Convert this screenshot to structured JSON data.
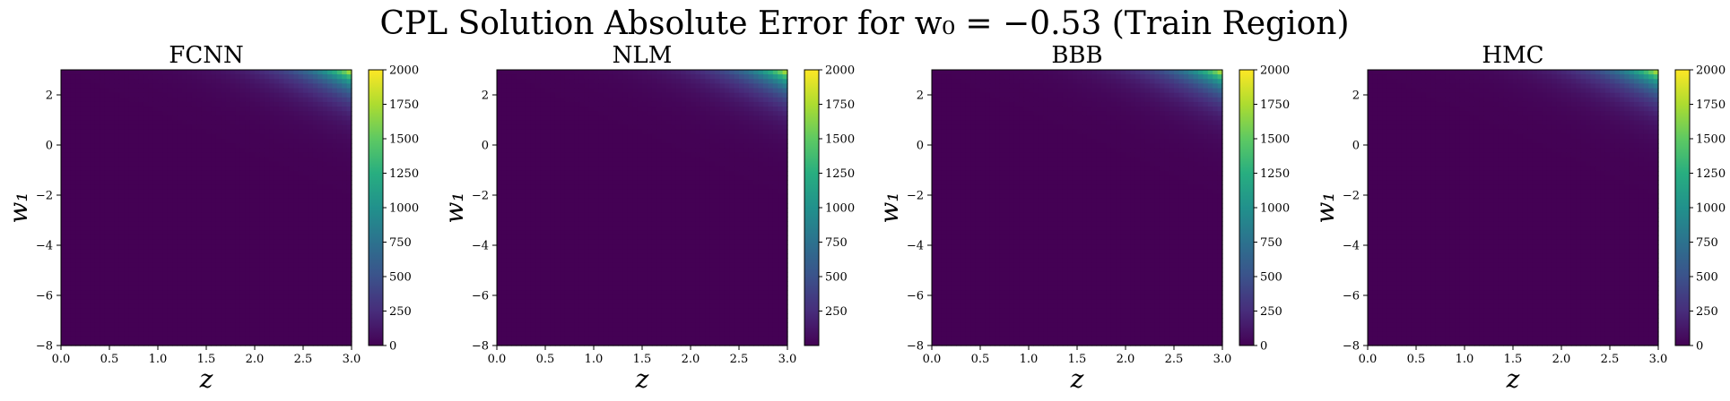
{
  "figure": {
    "suptitle": "CPL Solution Absolute Error for w₀ = −0.53 (Train Region)"
  },
  "chart_data": [
    {
      "type": "heatmap",
      "title": "FCNN",
      "xlabel": "z",
      "ylabel": "w₁",
      "xlim": [
        0.0,
        3.0
      ],
      "ylim": [
        -8,
        3
      ],
      "xticks": [
        "0.0",
        "0.5",
        "1.0",
        "1.5",
        "2.0",
        "2.5",
        "3.0"
      ],
      "yticks": [
        "2",
        "0",
        "−2",
        "−4",
        "−6",
        "−8"
      ],
      "colorbar": {
        "range": [
          0,
          2000
        ],
        "ticks": [
          "0",
          "250",
          "500",
          "750",
          "1000",
          "1250",
          "1500",
          "1750",
          "2000"
        ],
        "colormap": "viridis"
      },
      "peak_value": 2000,
      "peak_location": "top-right",
      "background_value": 0
    },
    {
      "type": "heatmap",
      "title": "NLM",
      "xlabel": "z",
      "ylabel": "w₁",
      "xlim": [
        0.0,
        3.0
      ],
      "ylim": [
        -8,
        3
      ],
      "xticks": [
        "0.0",
        "0.5",
        "1.0",
        "1.5",
        "2.0",
        "2.5",
        "3.0"
      ],
      "yticks": [
        "2",
        "0",
        "−2",
        "−4",
        "−6",
        "−8"
      ],
      "colorbar": {
        "range": [
          0,
          2000
        ],
        "ticks": [
          "250",
          "500",
          "750",
          "1000",
          "1250",
          "1500",
          "1750",
          "2000"
        ],
        "colormap": "viridis"
      },
      "peak_value": 2000,
      "peak_location": "top-right",
      "background_value": 0
    },
    {
      "type": "heatmap",
      "title": "BBB",
      "xlabel": "z",
      "ylabel": "w₁",
      "xlim": [
        0.0,
        3.0
      ],
      "ylim": [
        -8,
        3
      ],
      "xticks": [
        "0.0",
        "0.5",
        "1.0",
        "1.5",
        "2.0",
        "2.5",
        "3.0"
      ],
      "yticks": [
        "2",
        "0",
        "−2",
        "−4",
        "−6",
        "−8"
      ],
      "colorbar": {
        "range": [
          0,
          2000
        ],
        "ticks": [
          "0",
          "250",
          "500",
          "750",
          "1000",
          "1250",
          "1500",
          "1750",
          "2000"
        ],
        "colormap": "viridis"
      },
      "peak_value": 2000,
      "peak_location": "top-right",
      "background_value": 0
    },
    {
      "type": "heatmap",
      "title": "HMC",
      "xlabel": "z",
      "ylabel": "w₁",
      "xlim": [
        0.0,
        3.0
      ],
      "ylim": [
        -8,
        3
      ],
      "xticks": [
        "0.0",
        "0.5",
        "1.0",
        "1.5",
        "2.0",
        "2.5",
        "3.0"
      ],
      "yticks": [
        "2",
        "0",
        "−2",
        "−4",
        "−6",
        "−8"
      ],
      "colorbar": {
        "range": [
          0,
          2000
        ],
        "ticks": [
          "0",
          "250",
          "500",
          "750",
          "1000",
          "1250",
          "1500",
          "1750",
          "2000"
        ],
        "colormap": "viridis"
      },
      "peak_value": 2000,
      "peak_location": "top-right",
      "background_value": 0
    }
  ]
}
